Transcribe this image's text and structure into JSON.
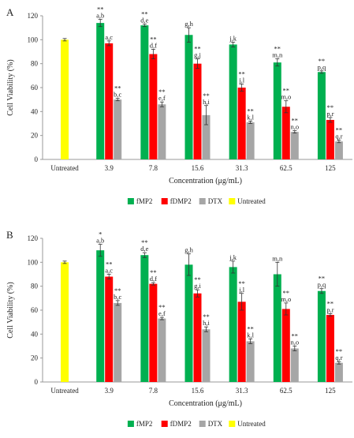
{
  "chart_data": [
    {
      "type": "bar",
      "panel": "A",
      "categories": [
        "Untreated",
        "3.9",
        "7.8",
        "15.6",
        "31.3",
        "62.5",
        "125"
      ],
      "xlabel": "Concentration (μg/mL)",
      "ylabel": "Cell Viability (%)",
      "ylim": [
        0,
        120
      ],
      "yticks": [
        0,
        20,
        40,
        60,
        80,
        100,
        120
      ],
      "grid": false,
      "legend_placement": "bottom",
      "series": [
        {
          "name": "fMP2",
          "color": "#00b050",
          "values": [
            null,
            114,
            112,
            104,
            96,
            81,
            73
          ],
          "errors": [
            null,
            3,
            1,
            6,
            2,
            3,
            1
          ],
          "labels": [
            null,
            [
              "**",
              "a,b"
            ],
            [
              "**",
              "d,e"
            ],
            [
              "g,h"
            ],
            [
              "j,k"
            ],
            [
              "**",
              "m,n"
            ],
            [
              "**",
              "p,q"
            ]
          ]
        },
        {
          "name": "fDMP2",
          "color": "#ff0000",
          "values": [
            null,
            97,
            88,
            80,
            60,
            44,
            33
          ],
          "errors": [
            null,
            2,
            4,
            4,
            3,
            5,
            2
          ],
          "labels": [
            null,
            [
              "a,c"
            ],
            [
              "**",
              "d,f"
            ],
            [
              "**",
              "g,j"
            ],
            [
              "**",
              "j,l"
            ],
            [
              "**",
              "m,o"
            ],
            [
              "**",
              "p,r"
            ]
          ]
        },
        {
          "name": "DTX",
          "color": "#a6a6a6",
          "values": [
            null,
            50,
            46,
            37,
            31,
            23,
            15
          ],
          "errors": [
            null,
            1,
            2,
            8,
            1,
            1,
            1
          ],
          "labels": [
            null,
            [
              "**",
              "b,c"
            ],
            [
              "**",
              "e,f"
            ],
            [
              "**",
              "h,i"
            ],
            [
              "**",
              "k,l"
            ],
            [
              "**",
              "n,o"
            ],
            [
              "**",
              "q,r"
            ]
          ]
        },
        {
          "name": "Untreated",
          "color": "#ffff00",
          "values": [
            100,
            null,
            null,
            null,
            null,
            null,
            null
          ],
          "errors": [
            1,
            null,
            null,
            null,
            null,
            null,
            null
          ],
          "labels": [
            null,
            null,
            null,
            null,
            null,
            null,
            null
          ]
        }
      ]
    },
    {
      "type": "bar",
      "panel": "B",
      "categories": [
        "Untreated",
        "3.9",
        "7.8",
        "15.6",
        "31.3",
        "62.5",
        "125"
      ],
      "xlabel": "Concentration (μg/mL)",
      "ylabel": "Cell Viability (%)",
      "ylim": [
        0,
        120
      ],
      "yticks": [
        0,
        20,
        40,
        60,
        80,
        100,
        120
      ],
      "grid": false,
      "legend_placement": "bottom",
      "series": [
        {
          "name": "fMP2",
          "color": "#00b050",
          "values": [
            null,
            110,
            106,
            98,
            96,
            90,
            76
          ],
          "errors": [
            null,
            5,
            2,
            9,
            5,
            10,
            2
          ],
          "labels": [
            null,
            [
              "*",
              "a,b"
            ],
            [
              "**",
              "d,e"
            ],
            [
              "g,h"
            ],
            [
              "j,k"
            ],
            [
              "m,n"
            ],
            [
              "**",
              "p,q"
            ]
          ]
        },
        {
          "name": "fDMP2",
          "color": "#ff0000",
          "values": [
            null,
            88,
            82,
            74,
            67,
            61,
            56
          ],
          "errors": [
            null,
            2,
            1,
            3,
            7,
            5,
            1
          ],
          "labels": [
            null,
            [
              "**",
              "a,c"
            ],
            [
              "**",
              "d,f"
            ],
            [
              "**",
              "g,i"
            ],
            [
              "**",
              "j,l"
            ],
            [
              "**",
              "m,o"
            ],
            [
              "**",
              "p,r"
            ]
          ]
        },
        {
          "name": "DTX",
          "color": "#a6a6a6",
          "values": [
            null,
            66,
            53,
            44,
            34,
            28,
            16
          ],
          "errors": [
            null,
            2,
            1,
            2,
            2,
            2,
            1
          ],
          "labels": [
            null,
            [
              "**",
              "b,c"
            ],
            [
              "**",
              "e,f"
            ],
            [
              "**",
              "h,i"
            ],
            [
              "**",
              "k,l"
            ],
            [
              "**",
              "n,o"
            ],
            [
              "**",
              "q,r"
            ]
          ]
        },
        {
          "name": "Untreated",
          "color": "#ffff00",
          "values": [
            100,
            null,
            null,
            null,
            null,
            null,
            null
          ],
          "errors": [
            1,
            null,
            null,
            null,
            null,
            null,
            null
          ],
          "labels": [
            null,
            null,
            null,
            null,
            null,
            null,
            null
          ]
        }
      ]
    }
  ]
}
